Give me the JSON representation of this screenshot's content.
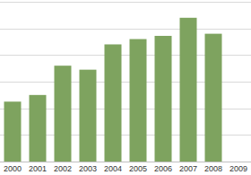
{
  "chart_data": {
    "type": "bar",
    "categories": [
      "2000",
      "2001",
      "2002",
      "2003",
      "2004",
      "2005",
      "2006",
      "2007",
      "2008",
      "2009"
    ],
    "values": [
      2.25,
      2.5,
      3.6,
      3.45,
      4.4,
      4.6,
      4.72,
      5.4,
      4.8,
      null
    ],
    "color": "#7ea35f",
    "ylim": [
      0,
      6
    ],
    "yticks": [
      0,
      1,
      2,
      3,
      4,
      5,
      6
    ],
    "grid": true,
    "tick_labels": "x"
  }
}
